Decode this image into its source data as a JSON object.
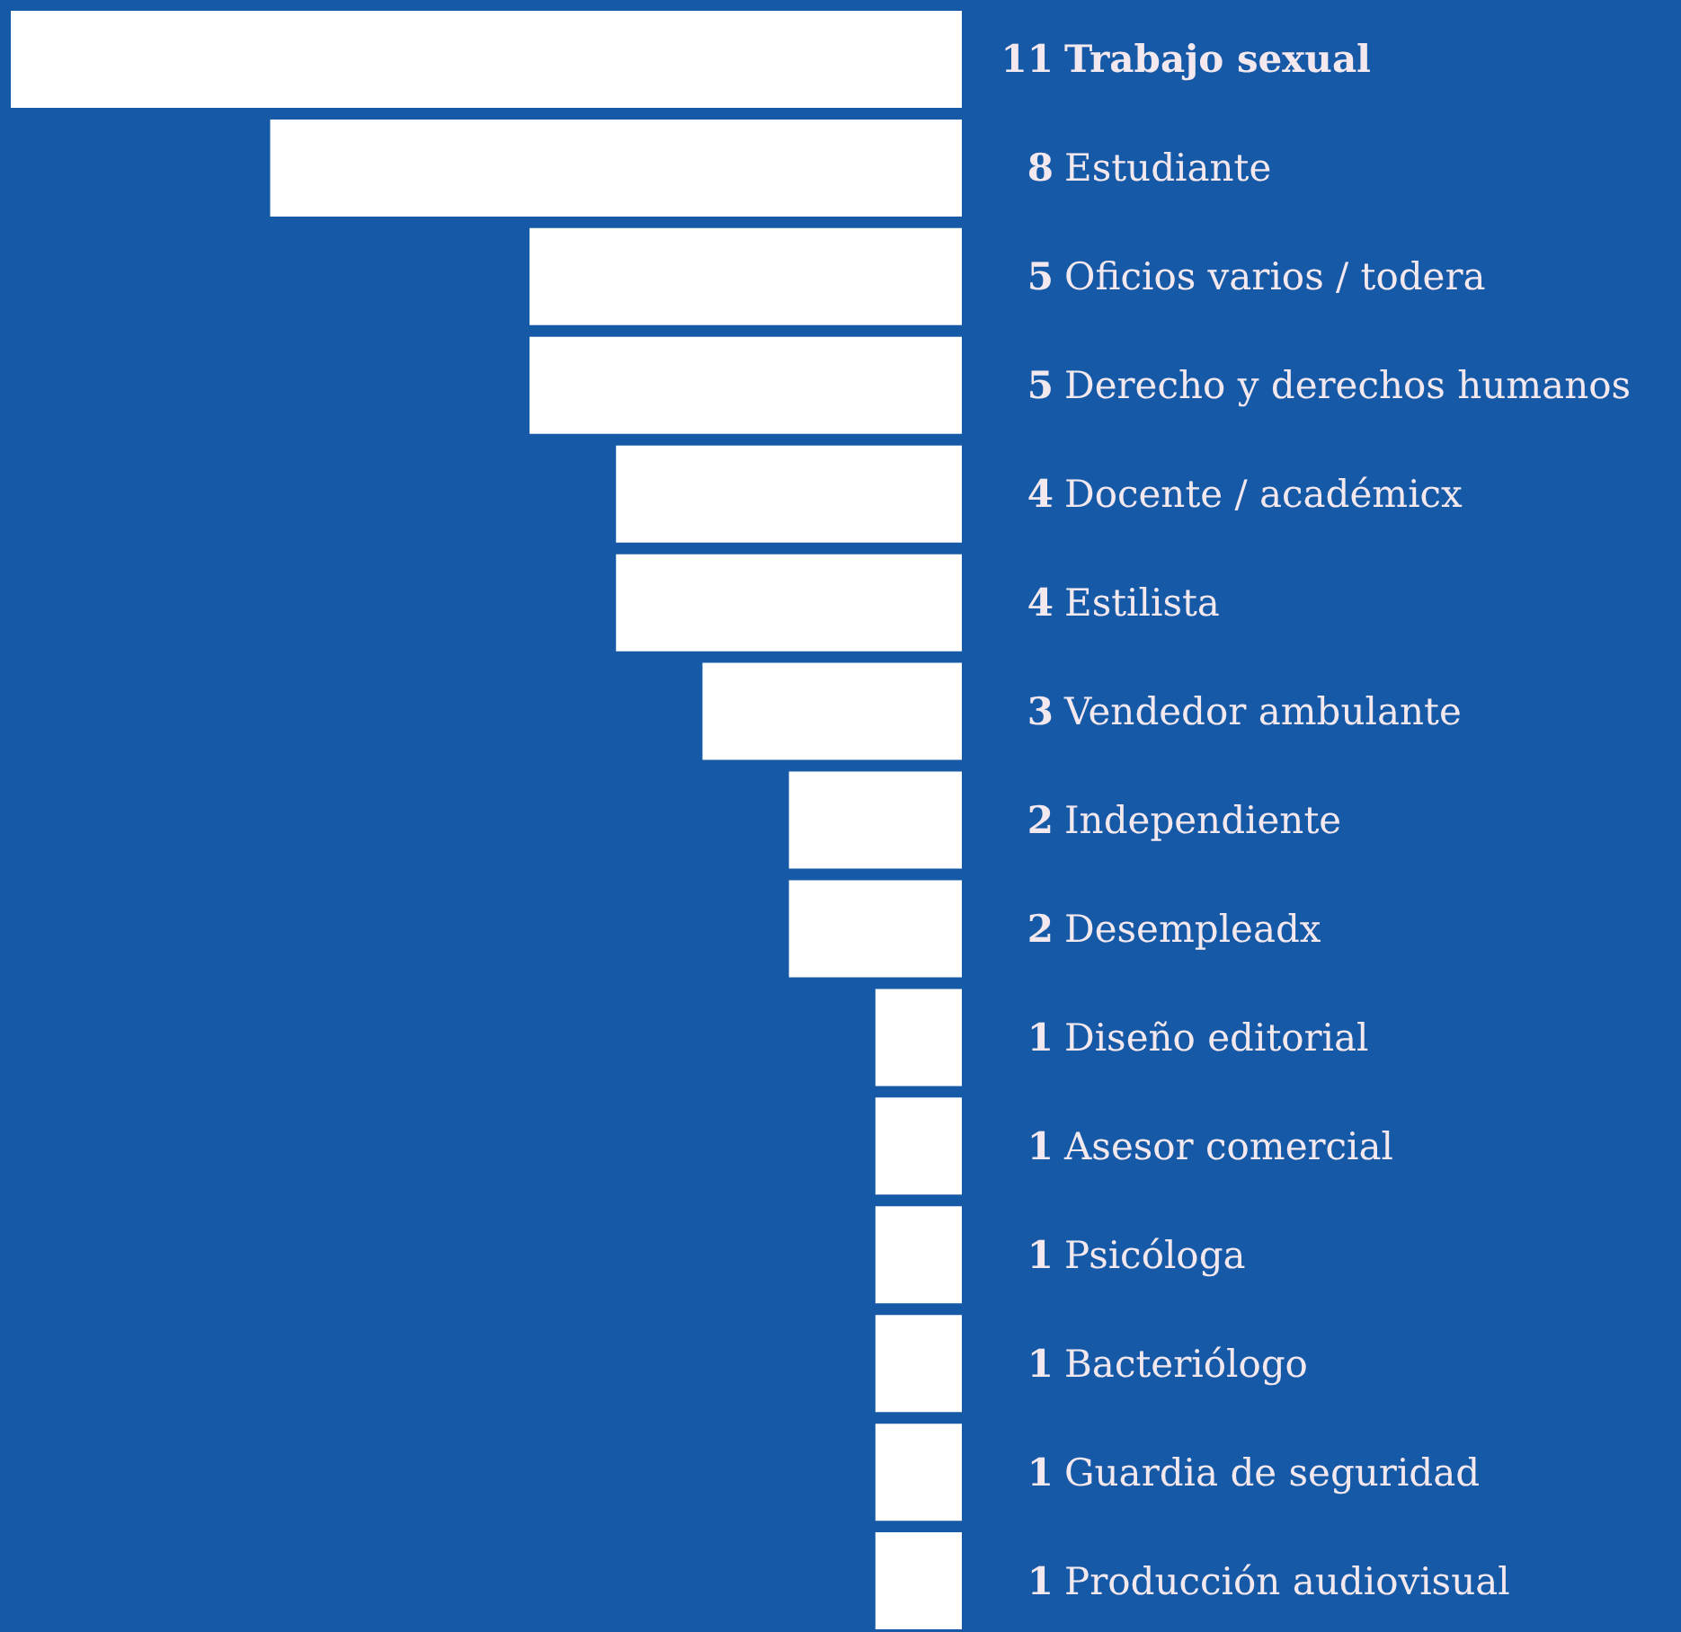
{
  "chart_data": {
    "type": "bar",
    "orientation": "horizontal",
    "categories": [
      "Trabajo sexual",
      "Estudiante",
      "Oficios varios / todera",
      "Derecho y derechos humanos",
      "Docente / académicx",
      "Estilista",
      "Vendedor ambulante",
      "Independiente",
      "Desempleadx",
      "Diseño editorial",
      "Asesor comercial",
      "Psicóloga",
      "Bacteriólogo",
      "Guardia de seguridad",
      "Producción audiovisual"
    ],
    "values": [
      11,
      8,
      5,
      5,
      4,
      4,
      3,
      2,
      2,
      1,
      1,
      1,
      1,
      1,
      1
    ],
    "color": "#ffffff",
    "data_labels": true
  }
}
